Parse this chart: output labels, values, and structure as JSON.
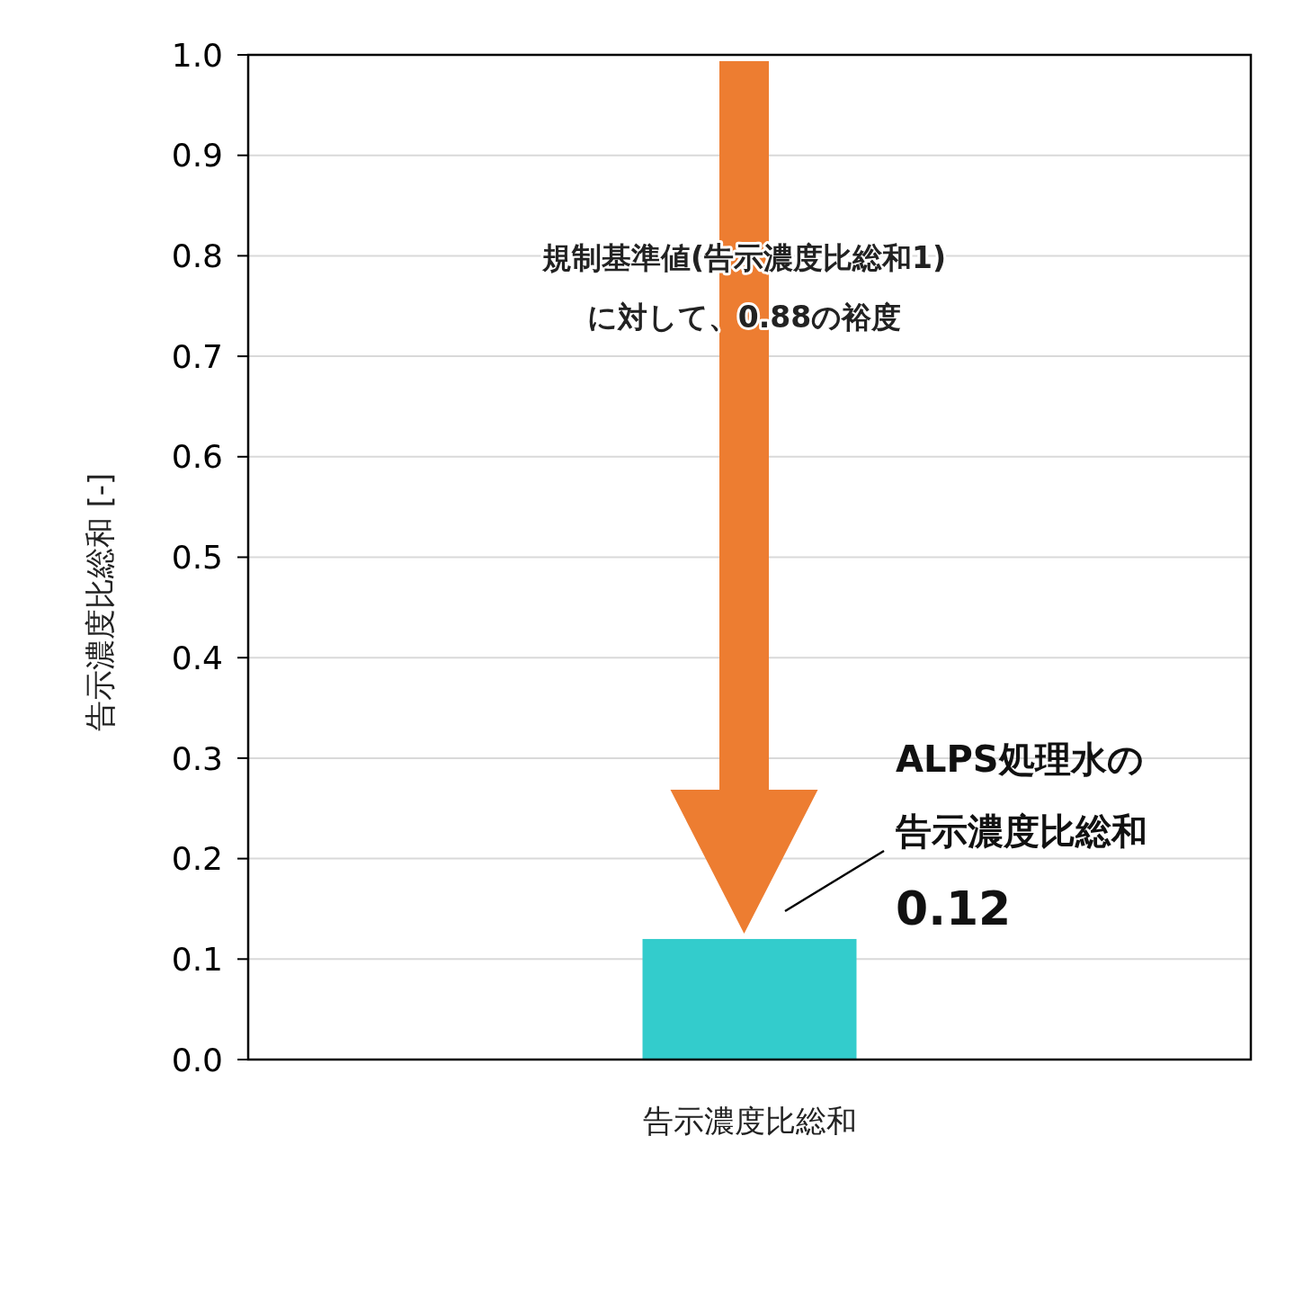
{
  "chart_data": {
    "type": "bar",
    "ylabel": "告示濃度比総和 [-]",
    "categories": [
      "告示濃度比総和"
    ],
    "values": [
      0.12
    ],
    "color": "#33cccc",
    "ylim": [
      0,
      1
    ],
    "yticks": [
      {
        "value": 0,
        "label": "0.0"
      },
      0.1,
      0.2,
      0.3,
      0.4,
      0.5,
      0.6,
      0.7,
      0.8,
      0.9,
      {
        "value": 1,
        "label": "1.0"
      }
    ],
    "grid": "y",
    "annotations": [
      "規制基準値(告示濃度比総和1)",
      "に対して、0.88の裕度",
      "ALPS処理水の",
      "告示濃度比総和",
      "0.12"
    ]
  }
}
